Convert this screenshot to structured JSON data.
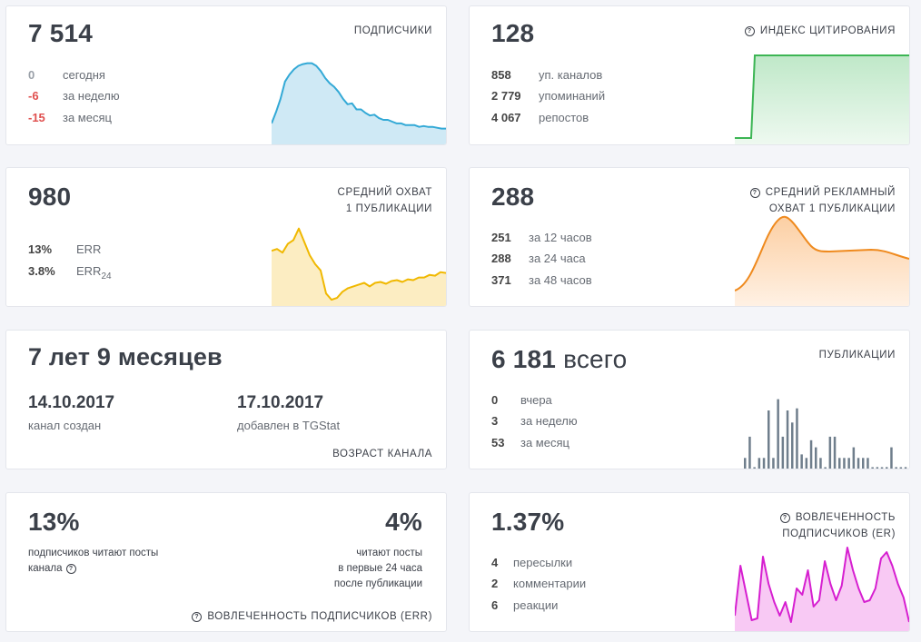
{
  "subscribers": {
    "value": "7 514",
    "title": "ПОДПИСЧИКИ",
    "stats": [
      {
        "value": "0",
        "label": "сегодня"
      },
      {
        "value": "-6",
        "label": "за неделю"
      },
      {
        "value": "-15",
        "label": "за месяц"
      }
    ],
    "color": "#33a9d6",
    "fill": "#cfe9f5",
    "series": [
      0.78,
      0.65,
      0.5,
      0.3,
      0.22,
      0.16,
      0.12,
      0.1,
      0.09,
      0.09,
      0.12,
      0.18,
      0.26,
      0.32,
      0.36,
      0.42,
      0.5,
      0.56,
      0.55,
      0.62,
      0.62,
      0.66,
      0.69,
      0.68,
      0.72,
      0.74,
      0.74,
      0.76,
      0.78,
      0.78,
      0.8,
      0.8,
      0.8,
      0.82,
      0.81,
      0.82,
      0.82,
      0.83,
      0.84,
      0.84
    ]
  },
  "citation": {
    "value": "128",
    "title": "ИНДЕКС ЦИТИРОВАНИЯ",
    "stats": [
      {
        "value": "858",
        "label": "уп. каналов"
      },
      {
        "value": "2 779",
        "label": "упоминаний"
      },
      {
        "value": "4 067",
        "label": "репостов"
      }
    ],
    "color": "#3cb554",
    "fill": "#d4f0da"
  },
  "avg_reach": {
    "value": "980",
    "title_lines": [
      "СРЕДНИЙ ОХВАТ",
      "1 ПУБЛИКАЦИИ"
    ],
    "stats": [
      {
        "value": "13%",
        "label": "ERR"
      },
      {
        "value": "3.8%",
        "label": "ERR",
        "sub": "24"
      }
    ],
    "color": "#f0b800",
    "fill": "#fcedc2",
    "series": [
      0.4,
      0.38,
      0.42,
      0.32,
      0.28,
      0.15,
      0.3,
      0.45,
      0.55,
      0.62,
      0.88,
      0.95,
      0.93,
      0.86,
      0.82,
      0.8,
      0.78,
      0.76,
      0.8,
      0.76,
      0.75,
      0.77,
      0.74,
      0.73,
      0.75,
      0.72,
      0.73,
      0.7,
      0.7,
      0.67,
      0.68,
      0.64,
      0.65
    ]
  },
  "ad_reach": {
    "value": "288",
    "title_lines": [
      "СРЕДНИЙ РЕКЛАМНЫЙ",
      "ОХВАТ 1 ПУБЛИКАЦИИ"
    ],
    "stats": [
      {
        "value": "251",
        "label": "за 12 часов"
      },
      {
        "value": "288",
        "label": "за 24 часа"
      },
      {
        "value": "371",
        "label": "за 48 часов"
      }
    ],
    "color": "#ef8a1e",
    "fill": "#fde0c5"
  },
  "age": {
    "value": "7 лет 9 месяцев",
    "created_date": "14.10.2017",
    "created_label": "канал создан",
    "added_date": "17.10.2017",
    "added_label": "добавлен в TGStat",
    "footer": "ВОЗРАСТ КАНАЛА"
  },
  "publications": {
    "value": "6 181",
    "suffix": "всего",
    "title": "ПУБЛИКАЦИИ",
    "stats": [
      {
        "value": "0",
        "label": "вчера"
      },
      {
        "value": "3",
        "label": "за неделю"
      },
      {
        "value": "53",
        "label": "за месяц"
      }
    ],
    "color": "#6f7e8c",
    "bars": [
      0.15,
      0.45,
      0,
      0.15,
      0.15,
      0.82,
      0.15,
      0.98,
      0.45,
      0.82,
      0.65,
      0.85,
      0.2,
      0.15,
      0.4,
      0.3,
      0.15,
      0,
      0.45,
      0.45,
      0.15,
      0.15,
      0.15,
      0.3,
      0.15,
      0.15,
      0.15,
      0,
      0.02,
      0,
      0.02,
      0.3,
      0.02,
      0,
      0.02
    ]
  },
  "err_card": {
    "left_value": "13%",
    "left_text": [
      "подписчиков читают посты",
      "канала"
    ],
    "right_value": "4%",
    "right_text": [
      "читают посты",
      "в первые 24 часа",
      "после публикации"
    ],
    "footer": "ВОВЛЕЧЕННОСТЬ ПОДПИСЧИКОВ (ERR)"
  },
  "er_card": {
    "value": "1.37%",
    "title_lines": [
      "ВОВЛЕЧЕННОСТЬ",
      "ПОДПИСЧИКОВ (ER)"
    ],
    "stats": [
      {
        "value": "4",
        "label": "пересылки"
      },
      {
        "value": "2",
        "label": "комментарии"
      },
      {
        "value": "6",
        "label": "реакции"
      }
    ],
    "color": "#d61fd0",
    "fill": "#f8c9f4",
    "series": [
      0.85,
      0.3,
      0.6,
      0.9,
      0.88,
      0.2,
      0.5,
      0.7,
      0.85,
      0.7,
      0.92,
      0.55,
      0.62,
      0.35,
      0.75,
      0.68,
      0.25,
      0.5,
      0.68,
      0.52,
      0.1,
      0.35,
      0.55,
      0.7,
      0.68,
      0.55,
      0.22,
      0.15,
      0.3,
      0.5,
      0.65,
      0.92
    ]
  }
}
